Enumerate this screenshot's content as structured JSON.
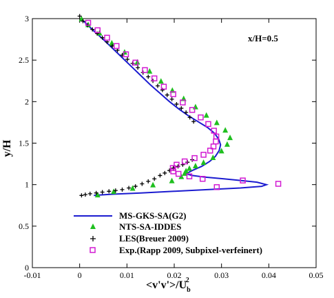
{
  "chart_data": {
    "type": "scatter",
    "annotation": "x/H=0.5",
    "xlabel": "<v'v'>/U",
    "xlabel_sup": "2",
    "xlabel_sub": "b",
    "ylabel": "y/H",
    "xlim": [
      -0.01,
      0.05
    ],
    "ylim": [
      0,
      3
    ],
    "xticks": [
      "-0.01",
      "0",
      "0.01",
      "0.02",
      "0.03",
      "0.04",
      "0.05"
    ],
    "yticks": [
      "0",
      "0.5",
      "1",
      "1.5",
      "2",
      "2.5",
      "3"
    ],
    "grid": false,
    "legend_position": "bottom",
    "series": [
      {
        "name": "MS-GKS-SA(G2)",
        "kind": "line",
        "color": "#1b1bd0",
        "x": [
          0.0003,
          0.0012,
          0.003,
          0.005,
          0.007,
          0.009,
          0.011,
          0.013,
          0.015,
          0.017,
          0.019,
          0.021,
          0.023,
          0.025,
          0.027,
          0.0285,
          0.0294,
          0.0298,
          0.0295,
          0.0287,
          0.0275,
          0.0258,
          0.0238,
          0.0225,
          0.0238,
          0.0265,
          0.0305,
          0.034,
          0.0375,
          0.0395,
          0.0385,
          0.034,
          0.027,
          0.02,
          0.013,
          0.007,
          0.003
        ],
        "y": [
          3.0,
          2.95,
          2.85,
          2.75,
          2.64,
          2.53,
          2.42,
          2.31,
          2.2,
          2.1,
          2.0,
          1.91,
          1.83,
          1.76,
          1.69,
          1.62,
          1.55,
          1.48,
          1.41,
          1.34,
          1.28,
          1.22,
          1.17,
          1.13,
          1.11,
          1.09,
          1.07,
          1.05,
          1.03,
          1.0,
          0.98,
          0.96,
          0.94,
          0.92,
          0.9,
          0.885,
          0.87
        ]
      },
      {
        "name": "NTS-SA-IDDES",
        "kind": "triangle",
        "color": "#1fbf1f",
        "x": [
          0.0004,
          0.0018,
          0.0042,
          0.0068,
          0.0095,
          0.0122,
          0.0148,
          0.0172,
          0.0196,
          0.022,
          0.0245,
          0.0268,
          0.029,
          0.0308,
          0.0318,
          0.0312,
          0.03,
          0.0282,
          0.0262,
          0.0245,
          0.0232,
          0.0225,
          0.0222,
          0.0215,
          0.0195,
          0.0155,
          0.0112,
          0.0072,
          0.0038
        ],
        "y": [
          3.0,
          2.93,
          2.83,
          2.71,
          2.6,
          2.48,
          2.37,
          2.25,
          2.14,
          2.04,
          1.94,
          1.84,
          1.75,
          1.66,
          1.57,
          1.49,
          1.41,
          1.33,
          1.27,
          1.23,
          1.2,
          1.17,
          1.14,
          1.1,
          1.05,
          1.0,
          0.96,
          0.92,
          0.88
        ]
      },
      {
        "name": "LES(Breuer 2009)",
        "kind": "plus",
        "color": "#000000",
        "x": [
          0.0,
          0.0007,
          0.0017,
          0.0027,
          0.0037,
          0.0048,
          0.0058,
          0.0069,
          0.008,
          0.009,
          0.0101,
          0.0112,
          0.0123,
          0.0134,
          0.0145,
          0.0155,
          0.0165,
          0.0175,
          0.0185,
          0.0195,
          0.0205,
          0.0215,
          0.0225,
          0.0233,
          0.0241,
          0.0238,
          0.0228,
          0.0218,
          0.0208,
          0.0198,
          0.019,
          0.018,
          0.017,
          0.0158,
          0.0145,
          0.0132,
          0.0118,
          0.0104,
          0.009,
          0.0076,
          0.0062,
          0.0048,
          0.0035,
          0.0022,
          0.0012,
          0.0004
        ],
        "y": [
          3.03,
          2.97,
          2.92,
          2.87,
          2.82,
          2.77,
          2.72,
          2.67,
          2.62,
          2.56,
          2.51,
          2.46,
          2.41,
          2.35,
          2.3,
          2.25,
          2.19,
          2.14,
          2.08,
          2.03,
          1.97,
          1.92,
          1.87,
          1.81,
          1.76,
          1.3,
          1.27,
          1.24,
          1.22,
          1.2,
          1.17,
          1.14,
          1.11,
          1.07,
          1.04,
          1.01,
          0.98,
          0.96,
          0.94,
          0.93,
          0.92,
          0.91,
          0.9,
          0.89,
          0.88,
          0.87
        ]
      },
      {
        "name": "Exp.(Rapp 2009, Subpixel-verfeinert)",
        "kind": "square",
        "color": "#d21ad2",
        "x": [
          0.0018,
          0.0038,
          0.0058,
          0.0078,
          0.0098,
          0.0118,
          0.0138,
          0.0158,
          0.0178,
          0.0198,
          0.0218,
          0.0238,
          0.0256,
          0.0272,
          0.0284,
          0.0289,
          0.0288,
          0.0283,
          0.0276,
          0.0262,
          0.0243,
          0.0222,
          0.0205,
          0.0197,
          0.0198,
          0.0209,
          0.0232,
          0.026,
          0.029,
          0.0345,
          0.042
        ],
        "y": [
          2.95,
          2.86,
          2.77,
          2.67,
          2.57,
          2.47,
          2.38,
          2.28,
          2.18,
          2.09,
          1.99,
          1.9,
          1.81,
          1.73,
          1.65,
          1.58,
          1.52,
          1.46,
          1.41,
          1.36,
          1.32,
          1.28,
          1.24,
          1.2,
          1.16,
          1.13,
          1.1,
          1.07,
          0.97,
          1.05,
          1.01
        ]
      }
    ]
  }
}
